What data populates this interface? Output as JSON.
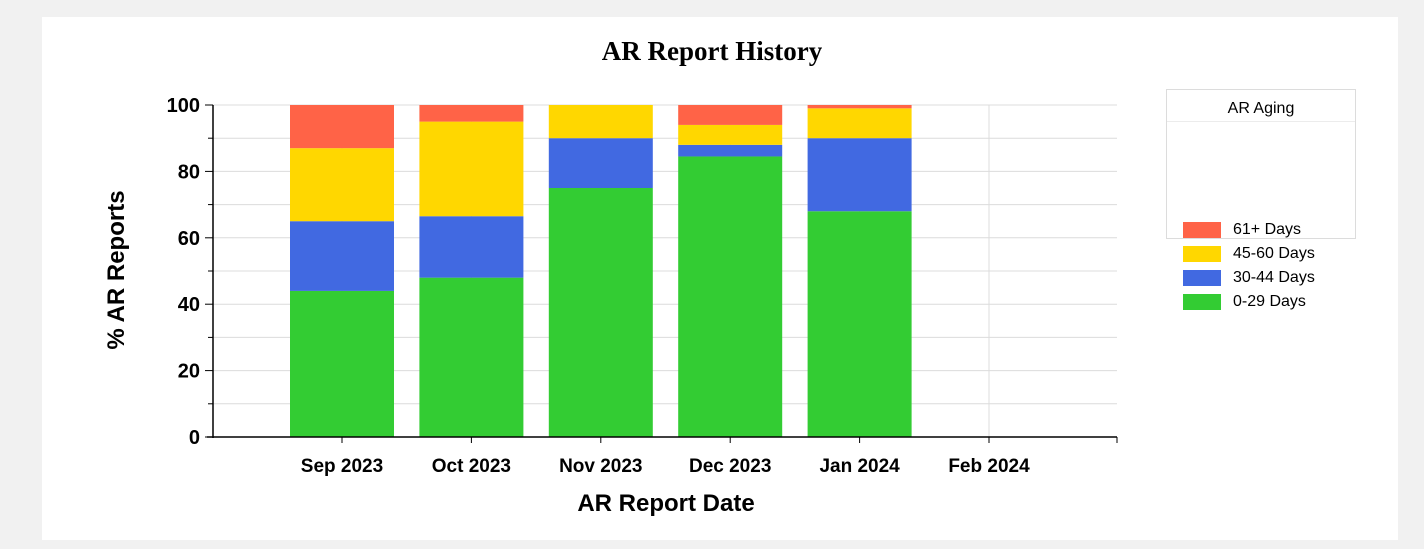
{
  "chart_data": {
    "type": "bar",
    "stacked": true,
    "title": "AR Report History",
    "xlabel": "AR Report Date",
    "ylabel": "% AR Reports",
    "ylim": [
      0,
      100
    ],
    "yticks": [
      "0",
      "20",
      "40",
      "60",
      "80",
      "100"
    ],
    "categories": [
      "Sep 2023",
      "Oct 2023",
      "Nov 2023",
      "Dec 2023",
      "Jan 2024",
      "Feb 2024"
    ],
    "series": [
      {
        "name": "0-29 Days",
        "color": "#33cc33",
        "values": [
          44,
          48,
          75,
          84.5,
          68,
          0
        ]
      },
      {
        "name": "30-44 Days",
        "color": "#4169e1",
        "values": [
          21,
          18.5,
          15,
          3.5,
          22,
          0
        ]
      },
      {
        "name": "45-60 Days",
        "color": "#ffd700",
        "values": [
          22,
          28.5,
          10,
          6,
          9,
          0
        ]
      },
      {
        "name": "61+ Days",
        "color": "#ff6347",
        "values": [
          13,
          5,
          0,
          6,
          1,
          0
        ]
      }
    ],
    "legend": {
      "title": "AR Aging",
      "position": "top-right"
    },
    "grid": true
  }
}
